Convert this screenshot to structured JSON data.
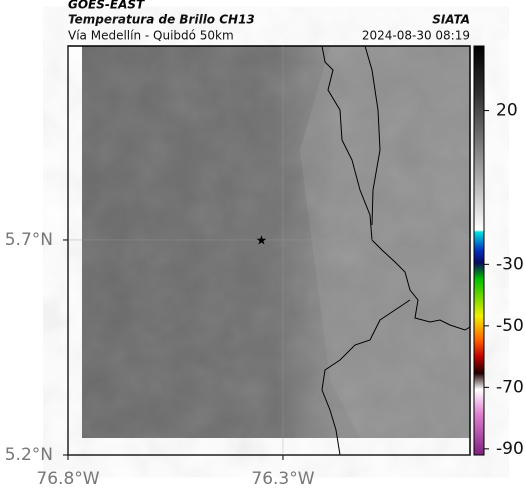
{
  "header": {
    "title": "GOES-EAST",
    "subtitle": "Temperatura de Brillo CH13",
    "source": "SIATA",
    "route": "Vía Medellín - Quibdó 50km",
    "timestamp": "2024-08-30 08:19"
  },
  "map": {
    "xlim": [
      -76.8,
      -75.865
    ],
    "ylim": [
      5.2,
      6.151
    ],
    "xticks": [
      {
        "value": -76.8,
        "label": "76.8°W"
      },
      {
        "value": -76.3,
        "label": "76.3°W"
      }
    ],
    "yticks": [
      {
        "value": 5.2,
        "label": "5.2°N"
      },
      {
        "value": 5.7,
        "label": "5.7°N"
      }
    ],
    "grid": true,
    "points": [
      {
        "lon": -76.35,
        "lat": 5.7
      }
    ]
  },
  "colorbar": {
    "clim": [
      -92,
      41
    ],
    "ticks": [
      20,
      -30,
      -50,
      -70,
      -90
    ]
  }
}
